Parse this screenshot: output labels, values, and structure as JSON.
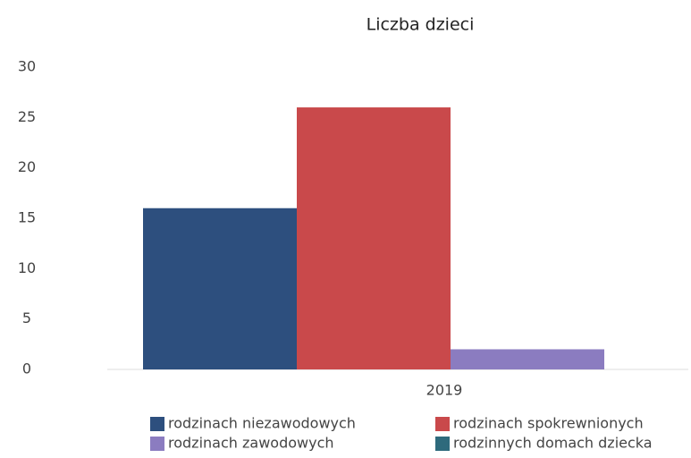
{
  "chart_data": {
    "type": "bar",
    "title": "Liczba dzieci",
    "categories": [
      "2019"
    ],
    "series": [
      {
        "name": "rodzinach niezawodowych",
        "color": "#2d4f7e",
        "values": [
          16
        ]
      },
      {
        "name": "rodzinach spokrewnionych",
        "color": "#c9494b",
        "values": [
          26
        ]
      },
      {
        "name": "rodzinach zawodowych",
        "color": "#8b7cc0",
        "values": [
          2
        ]
      },
      {
        "name": "rodzinnych domach dziecka",
        "color": "#2e6a7c",
        "values": [
          0
        ]
      }
    ],
    "ylim": [
      0,
      30
    ],
    "yticks": [
      0,
      5,
      10,
      15,
      20,
      25,
      30
    ],
    "grid": false
  }
}
